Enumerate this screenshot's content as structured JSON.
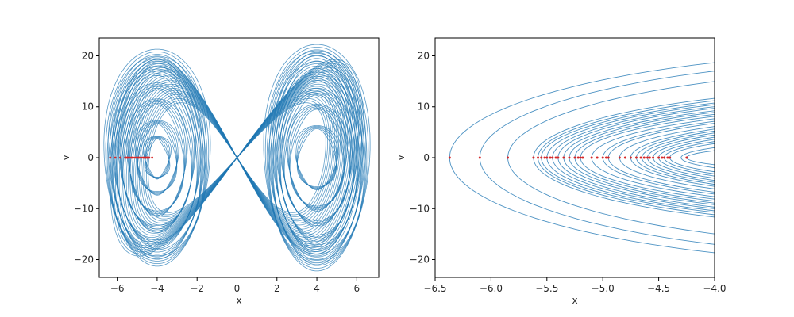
{
  "chart_data": [
    {
      "type": "line",
      "title": "",
      "xlabel": "x",
      "ylabel": "v",
      "xlim": [
        -6.9,
        7.1
      ],
      "ylim": [
        -23.5,
        23.5
      ],
      "xticks": [
        -6,
        -4,
        -2,
        0,
        2,
        4,
        6
      ],
      "xtick_labels": [
        "−6",
        "−4",
        "−2",
        "0",
        "2",
        "4",
        "6"
      ],
      "yticks": [
        -20,
        -10,
        0,
        10,
        20
      ],
      "ytick_labels": [
        "−20",
        "−10",
        "0",
        "10",
        "20"
      ],
      "grid": false,
      "series": [
        {
          "kind": "phase-trajectory",
          "color": "#1f77b4",
          "orbits": [
            {
              "center": [
                -4.0,
                0
              ],
              "a": [
                0.6,
                1.0,
                1.4,
                1.8,
                2.1,
                2.3,
                2.5
              ],
              "b": [
                4,
                7,
                11,
                14,
                17,
                19,
                20.3
              ]
            },
            {
              "center": [
                4.0,
                0
              ],
              "a": [
                1.0,
                1.4,
                1.7,
                1.9,
                2.1,
                2.3,
                2.5
              ],
              "b": [
                6,
                10,
                13,
                16,
                18,
                20,
                21.2
              ]
            }
          ]
        },
        {
          "kind": "poincare-points",
          "color": "#d62728",
          "x": [
            -6.35,
            -6.1,
            -5.85,
            -5.6,
            -5.55,
            -5.5,
            -5.45,
            -5.4,
            -5.3,
            -5.25,
            -5.2,
            -5.1,
            -5.0,
            -4.95,
            -4.9,
            -4.8,
            -4.7,
            -4.65,
            -4.6,
            -4.55,
            -4.5,
            -4.45,
            -4.4,
            -4.25
          ],
          "y": [
            0,
            0,
            0,
            0,
            0,
            0,
            0,
            0,
            0,
            0,
            0,
            0,
            0,
            0,
            0,
            0,
            0,
            0,
            0,
            0,
            0,
            0,
            0,
            0
          ]
        }
      ]
    },
    {
      "type": "line",
      "title": "",
      "xlabel": "x",
      "ylabel": "v",
      "xlim": [
        -6.5,
        -4.0
      ],
      "ylim": [
        -23.5,
        23.5
      ],
      "xticks": [
        -6.5,
        -6.0,
        -5.5,
        -5.0,
        -4.5,
        -4.0
      ],
      "xtick_labels": [
        "−6.5",
        "−6.0",
        "−5.5",
        "−5.0",
        "−4.5",
        "−4.0"
      ],
      "yticks": [
        -20,
        -10,
        0,
        10,
        20
      ],
      "ytick_labels": [
        "−20",
        "−10",
        "0",
        "10",
        "20"
      ],
      "grid": false,
      "series": [
        {
          "kind": "phase-trajectory",
          "color": "#1f77b4",
          "left_turn_x": [
            -6.37,
            -6.1,
            -5.85,
            -5.62,
            -5.58,
            -5.55,
            -5.5,
            -5.45,
            -5.4,
            -5.35,
            -5.3,
            -5.25,
            -5.2,
            -5.1,
            -5.0,
            -4.95,
            -4.85,
            -4.75,
            -4.7,
            -4.65,
            -4.6,
            -4.55,
            -4.5,
            -4.45,
            -4.4,
            -4.3,
            -4.25
          ],
          "extent_v": [
            21,
            19.5,
            17.5,
            14,
            13.5,
            13,
            12.7,
            12.3,
            12,
            11.5,
            11.2,
            10.8,
            10.4,
            10,
            9.6,
            9.2,
            8.6,
            8.2,
            7.8,
            7.4,
            7,
            6.5,
            6,
            5.5,
            5,
            4,
            3
          ]
        },
        {
          "kind": "poincare-points",
          "color": "#d62728",
          "x": [
            -6.37,
            -6.1,
            -5.85,
            -5.62,
            -5.58,
            -5.55,
            -5.52,
            -5.5,
            -5.47,
            -5.45,
            -5.42,
            -5.4,
            -5.35,
            -5.3,
            -5.25,
            -5.22,
            -5.2,
            -5.18,
            -5.1,
            -5.05,
            -5.0,
            -4.97,
            -4.95,
            -4.85,
            -4.8,
            -4.75,
            -4.7,
            -4.66,
            -4.63,
            -4.6,
            -4.58,
            -4.55,
            -4.5,
            -4.47,
            -4.45,
            -4.42,
            -4.4,
            -4.25
          ],
          "y": [
            0,
            0,
            0,
            0,
            0,
            0,
            0,
            0,
            0,
            0,
            0,
            0,
            0,
            0,
            0,
            0,
            0,
            0,
            0,
            0,
            0,
            0,
            0,
            0,
            0,
            0,
            0,
            0,
            0,
            0,
            0,
            0,
            0,
            0,
            0,
            0,
            0,
            0
          ]
        }
      ]
    }
  ]
}
